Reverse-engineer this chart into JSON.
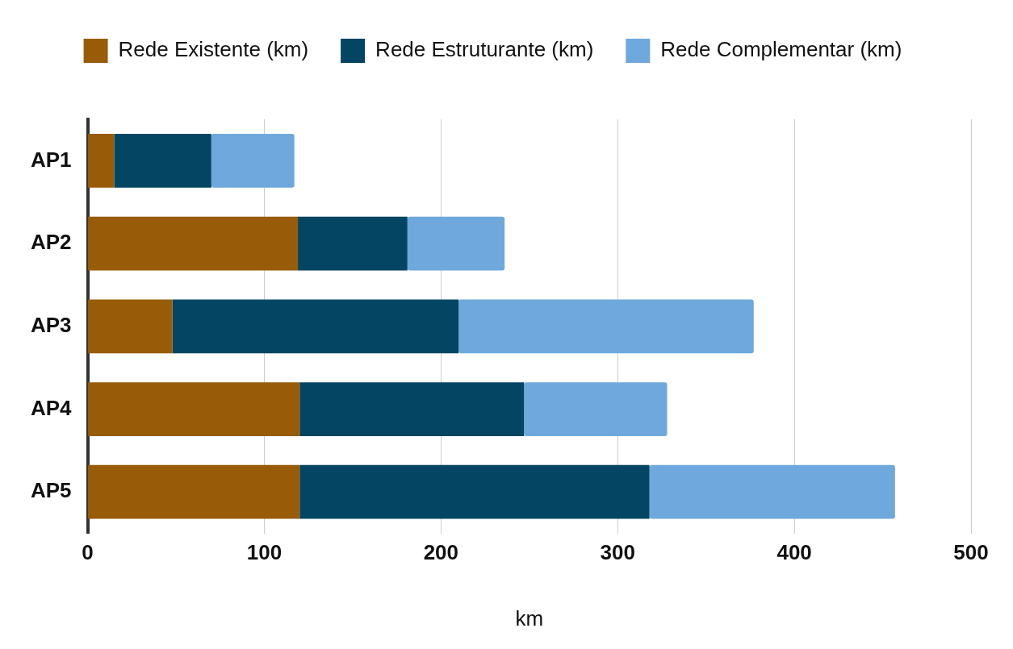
{
  "chart_data": {
    "type": "bar",
    "orientation": "horizontal",
    "stacked": true,
    "xlabel": "km",
    "categories": [
      "AP1",
      "AP2",
      "AP3",
      "AP4",
      "AP5"
    ],
    "series": [
      {
        "name": "Rede Existente (km)",
        "color": "#985b07",
        "values": [
          15,
          119,
          48,
          120,
          120
        ]
      },
      {
        "name": "Rede Estruturante (km)",
        "color": "#034563",
        "values": [
          55,
          62,
          162,
          127,
          198
        ]
      },
      {
        "name": "Rede Complementar (km)",
        "color": "#6fa8dc",
        "values": [
          47,
          55,
          167,
          81,
          139
        ]
      }
    ],
    "xlim": [
      0,
      500
    ],
    "xticks": [
      0,
      100,
      200,
      300,
      400,
      500
    ],
    "grid": "x",
    "legend": "top"
  }
}
